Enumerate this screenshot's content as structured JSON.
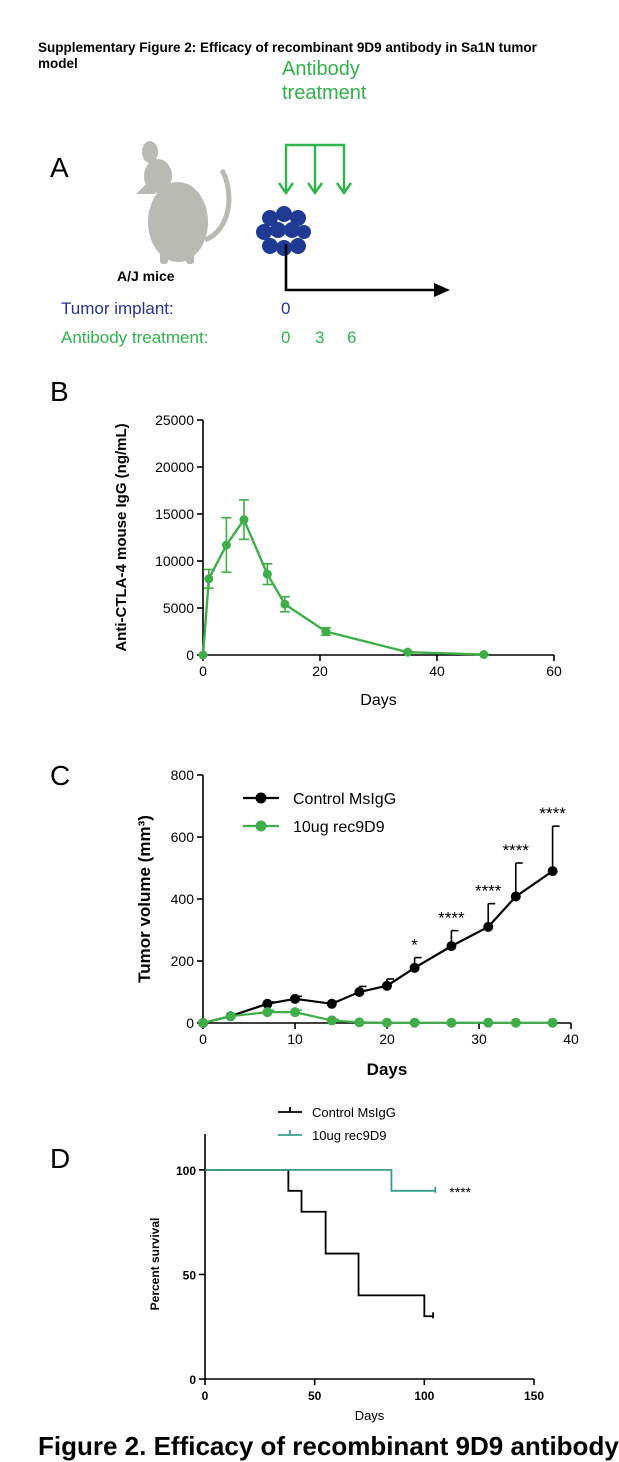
{
  "figure": {
    "title": "Supplementary Figure 2: Efficacy of recombinant 9D9 antibody in Sa1N tumor model",
    "bottom_text": "Figure 2. Efficacy of recombinant 9D9 antibody"
  },
  "panels": {
    "a": {
      "letter": "A",
      "mouse_label": "A/J mice",
      "treatment_heading": "Antibody treatment",
      "tumor_label": "Tumor implant:",
      "tumor_days": [
        "0"
      ],
      "treatment_label": "Antibody treatment:",
      "treatment_days": [
        "0",
        "3",
        "6"
      ],
      "colors": {
        "treatment": "#2fb34a",
        "tumor": "#24348f"
      }
    },
    "b": {
      "letter": "B"
    },
    "c": {
      "letter": "C"
    },
    "d": {
      "letter": "D"
    }
  },
  "chart_data": [
    {
      "panel": "B",
      "type": "line",
      "xlabel": "Days",
      "ylabel": "Anti-CTLA-4 mouse IgG (ng/mL)",
      "xlim": [
        0,
        60
      ],
      "ylim": [
        0,
        25000
      ],
      "xticks": [
        0,
        20,
        40,
        60
      ],
      "yticks": [
        0,
        5000,
        10000,
        15000,
        20000,
        25000
      ],
      "series": [
        {
          "color": "#3fae49",
          "x": [
            0,
            1,
            4,
            7,
            11,
            14,
            21,
            35,
            48
          ],
          "y": [
            0,
            8100,
            11700,
            14400,
            8600,
            5400,
            2500,
            300,
            50
          ],
          "err": [
            0,
            1000,
            2900,
            2100,
            1100,
            800,
            400,
            100,
            50
          ]
        }
      ]
    },
    {
      "panel": "C",
      "type": "line",
      "xlabel": "Days",
      "ylabel": "Tumor volume  (mm³)",
      "xlim": [
        0,
        40
      ],
      "ylim": [
        0,
        800
      ],
      "xticks": [
        0,
        10,
        20,
        30,
        40
      ],
      "yticks": [
        0,
        200,
        400,
        600,
        800
      ],
      "legend_position": "top-left",
      "series": [
        {
          "name": "Control MsIgG",
          "color": "#000000",
          "x": [
            0,
            3,
            7,
            10,
            14,
            17,
            20,
            23,
            27,
            31,
            34,
            38
          ],
          "y": [
            0,
            22,
            62,
            78,
            62,
            100,
            120,
            178,
            248,
            310,
            408,
            490
          ],
          "err": [
            0,
            4,
            6,
            8,
            8,
            18,
            22,
            33,
            50,
            75,
            108,
            145
          ]
        },
        {
          "name": "10ug rec9D9",
          "color": "#3fae49",
          "x": [
            0,
            3,
            7,
            10,
            14,
            17,
            20,
            23,
            27,
            31,
            34,
            38
          ],
          "y": [
            0,
            22,
            35,
            35,
            8,
            2,
            1,
            1,
            1,
            1,
            1,
            1
          ],
          "err": [
            0,
            3,
            6,
            6,
            4,
            1,
            0,
            0,
            0,
            0,
            0,
            0
          ]
        }
      ],
      "annotations": [
        {
          "x": 23,
          "text": "*"
        },
        {
          "x": 27,
          "text": "****"
        },
        {
          "x": 31,
          "text": "****"
        },
        {
          "x": 34,
          "text": "****"
        },
        {
          "x": 38,
          "text": "****"
        }
      ]
    },
    {
      "panel": "D",
      "type": "line",
      "xlabel": "Days",
      "ylabel": "Percent survival",
      "xlim": [
        0,
        150
      ],
      "ylim": [
        0,
        110
      ],
      "xticks": [
        0,
        50,
        100,
        150
      ],
      "yticks": [
        0,
        50,
        100
      ],
      "legend_position": "top",
      "series": [
        {
          "name": "Control MsIgG",
          "color": "#000000",
          "x": [
            0,
            38,
            38,
            44,
            44,
            55,
            55,
            70,
            70,
            100,
            100,
            104
          ],
          "y": [
            100,
            100,
            90,
            90,
            80,
            80,
            60,
            60,
            40,
            40,
            30,
            30
          ]
        },
        {
          "name": "10ug rec9D9",
          "color": "#3a9b8c",
          "x": [
            0,
            85,
            85,
            105
          ],
          "y": [
            100,
            100,
            90,
            90
          ]
        }
      ],
      "annotations": [
        {
          "x": 105,
          "y": 90,
          "text": "****"
        }
      ]
    }
  ]
}
